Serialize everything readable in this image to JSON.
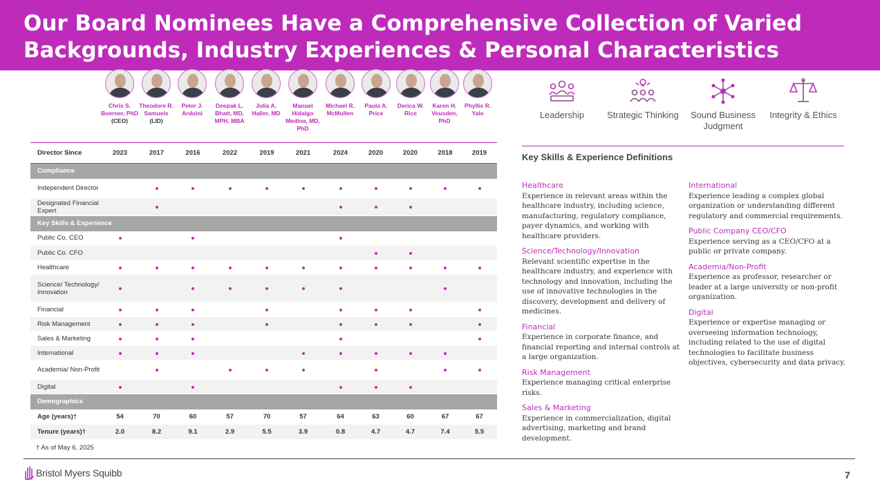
{
  "title": {
    "line1": "Our Board Nominees Have a Comprehensive Collection of Varied",
    "line2": "Backgrounds, Industry Experiences & Personal Characteristics"
  },
  "directors": [
    {
      "name": "Chris S. Boerner, PhD",
      "sub": "(CEO)"
    },
    {
      "name": "Theodore R. Samuels",
      "sub": "(LID)"
    },
    {
      "name": "Peter J. Arduini",
      "sub": ""
    },
    {
      "name": "Deepak L. Bhatt, MD, MPH, MBA",
      "sub": ""
    },
    {
      "name": "Julia A. Haller, MD",
      "sub": ""
    },
    {
      "name": "Manuel Hidalgo Medina, MD, PhD",
      "sub": ""
    },
    {
      "name": "Michael R. McMullen",
      "sub": ""
    },
    {
      "name": "Paula A. Price",
      "sub": ""
    },
    {
      "name": "Derica W. Rice",
      "sub": ""
    },
    {
      "name": "Karen H. Vousden, PhD",
      "sub": ""
    },
    {
      "name": "Phyllis R. Yale",
      "sub": ""
    }
  ],
  "table": {
    "director_since_label": "Director Since",
    "director_since": [
      "2023",
      "2017",
      "2016",
      "2022",
      "2019",
      "2021",
      "2024",
      "2020",
      "2020",
      "2018",
      "2019"
    ],
    "sections": [
      {
        "title": "Compliance",
        "rows": [
          {
            "label": "Independent Director",
            "marks": [
              0,
              1,
              1,
              1,
              1,
              1,
              1,
              1,
              1,
              1,
              1
            ]
          },
          {
            "label": "Designated Financial Expert",
            "marks": [
              0,
              1,
              0,
              0,
              0,
              0,
              1,
              1,
              1,
              0,
              0
            ]
          }
        ]
      },
      {
        "title": "Key Skills & Experience",
        "rows": [
          {
            "label": "Public Co. CEO",
            "marks": [
              1,
              0,
              1,
              0,
              0,
              0,
              1,
              0,
              0,
              0,
              0
            ]
          },
          {
            "label": "Public Co. CFO",
            "marks": [
              0,
              0,
              0,
              0,
              0,
              0,
              0,
              1,
              1,
              0,
              0
            ]
          },
          {
            "label": "Healthcare",
            "marks": [
              1,
              1,
              1,
              1,
              1,
              1,
              1,
              1,
              1,
              1,
              1
            ]
          },
          {
            "label": "Science/ Technology/ Innovation",
            "marks": [
              1,
              0,
              1,
              1,
              1,
              1,
              1,
              0,
              0,
              1,
              0
            ]
          },
          {
            "label": "Financial",
            "marks": [
              1,
              1,
              1,
              0,
              1,
              0,
              1,
              1,
              1,
              0,
              1
            ]
          },
          {
            "label": "Risk Management",
            "marks": [
              1,
              1,
              1,
              0,
              1,
              0,
              1,
              1,
              1,
              0,
              1
            ]
          },
          {
            "label": "Sales & Marketing",
            "marks": [
              1,
              1,
              1,
              0,
              0,
              0,
              1,
              0,
              0,
              0,
              1
            ]
          },
          {
            "label": "International",
            "marks": [
              1,
              1,
              1,
              0,
              0,
              1,
              1,
              1,
              1,
              1,
              0
            ]
          },
          {
            "label": "Academia/ Non-Profit",
            "marks": [
              0,
              1,
              0,
              1,
              1,
              1,
              0,
              1,
              0,
              1,
              1
            ]
          },
          {
            "label": "Digital",
            "marks": [
              1,
              0,
              1,
              0,
              0,
              0,
              1,
              1,
              1,
              0,
              0
            ]
          }
        ]
      },
      {
        "title": "Demographics",
        "rows": [
          {
            "label": "Age (years)†",
            "values": [
              "54",
              "70",
              "60",
              "57",
              "70",
              "57",
              "64",
              "63",
              "60",
              "67",
              "67"
            ]
          },
          {
            "label": "Tenure (years)†",
            "values": [
              "2.0",
              "8.2",
              "9.1",
              "2.9",
              "5.5",
              "3.9",
              "0.8",
              "4.7",
              "4.7",
              "7.4",
              "5.5"
            ]
          }
        ]
      }
    ]
  },
  "footnote": "† As of May 6, 2025",
  "pillars": [
    {
      "label": "Leadership",
      "icon": "leadership-icon"
    },
    {
      "label": "Strategic Thinking",
      "icon": "strategic-thinking-icon"
    },
    {
      "label": "Sound Business Judgment",
      "icon": "network-icon"
    },
    {
      "label": "Integrity & Ethics",
      "icon": "scales-icon"
    }
  ],
  "definitions_title": "Key Skills & Experience Definitions",
  "definitions_left": [
    {
      "heading": "Healthcare",
      "text": "Experience in relevant areas within the healthcare industry, including science, manufacturing, regulatory compliance, payer dynamics, and working with healthcare providers."
    },
    {
      "heading": "Science/Technology/Innovation",
      "text": "Relevant scientific expertise in the healthcare industry, and experience with technology and innovation, including the use of innovative technologies in the discovery, development and delivery of medicines."
    },
    {
      "heading": "Financial",
      "text": "Experience in corporate finance, and financial reporting and internal controls at a large organization."
    },
    {
      "heading": "Risk Management",
      "text": "Experience managing critical enterprise risks."
    },
    {
      "heading": "Sales & Marketing",
      "text": "Experience in commercialization, digital advertising, marketing and brand development."
    }
  ],
  "definitions_right": [
    {
      "heading": "International",
      "text": "Experience leading a complex global organization or understanding different regulatory and commercial requirements."
    },
    {
      "heading": "Public Company CEO/CFO",
      "text": "Experience serving as a CEO/CFO at a public or private company."
    },
    {
      "heading": "Academia/Non-Profit",
      "text": "Experience as professor, researcher or leader at a large university or non-profit organization."
    },
    {
      "heading": "Digital",
      "text": "Experience or expertise managing or overseeing information technology, including related to the use of digital technologies to facilitate business objectives, cybersecurity and data privacy."
    }
  ],
  "footer": {
    "company": "Bristol Myers Squibb",
    "page_number": "7"
  },
  "colors": {
    "accent": "#be2bbb",
    "section_bar": "#a6a6a6"
  }
}
